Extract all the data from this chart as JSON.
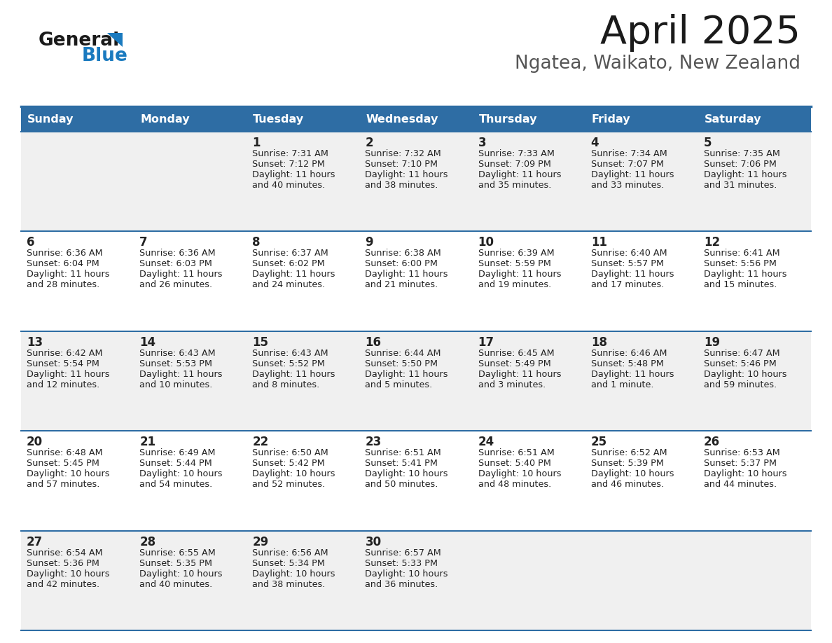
{
  "title": "April 2025",
  "subtitle": "Ngatea, Waikato, New Zealand",
  "header_bg": "#2e6da4",
  "header_text": "#ffffff",
  "row_bg_odd": "#f0f0f0",
  "row_bg_even": "#ffffff",
  "cell_border": "#2e6da4",
  "days_of_week": [
    "Sunday",
    "Monday",
    "Tuesday",
    "Wednesday",
    "Thursday",
    "Friday",
    "Saturday"
  ],
  "calendar": [
    [
      {
        "day": "",
        "sunrise": "",
        "sunset": "",
        "daylight": ""
      },
      {
        "day": "",
        "sunrise": "",
        "sunset": "",
        "daylight": ""
      },
      {
        "day": "1",
        "sunrise": "Sunrise: 7:31 AM",
        "sunset": "Sunset: 7:12 PM",
        "daylight": "Daylight: 11 hours\nand 40 minutes."
      },
      {
        "day": "2",
        "sunrise": "Sunrise: 7:32 AM",
        "sunset": "Sunset: 7:10 PM",
        "daylight": "Daylight: 11 hours\nand 38 minutes."
      },
      {
        "day": "3",
        "sunrise": "Sunrise: 7:33 AM",
        "sunset": "Sunset: 7:09 PM",
        "daylight": "Daylight: 11 hours\nand 35 minutes."
      },
      {
        "day": "4",
        "sunrise": "Sunrise: 7:34 AM",
        "sunset": "Sunset: 7:07 PM",
        "daylight": "Daylight: 11 hours\nand 33 minutes."
      },
      {
        "day": "5",
        "sunrise": "Sunrise: 7:35 AM",
        "sunset": "Sunset: 7:06 PM",
        "daylight": "Daylight: 11 hours\nand 31 minutes."
      }
    ],
    [
      {
        "day": "6",
        "sunrise": "Sunrise: 6:36 AM",
        "sunset": "Sunset: 6:04 PM",
        "daylight": "Daylight: 11 hours\nand 28 minutes."
      },
      {
        "day": "7",
        "sunrise": "Sunrise: 6:36 AM",
        "sunset": "Sunset: 6:03 PM",
        "daylight": "Daylight: 11 hours\nand 26 minutes."
      },
      {
        "day": "8",
        "sunrise": "Sunrise: 6:37 AM",
        "sunset": "Sunset: 6:02 PM",
        "daylight": "Daylight: 11 hours\nand 24 minutes."
      },
      {
        "day": "9",
        "sunrise": "Sunrise: 6:38 AM",
        "sunset": "Sunset: 6:00 PM",
        "daylight": "Daylight: 11 hours\nand 21 minutes."
      },
      {
        "day": "10",
        "sunrise": "Sunrise: 6:39 AM",
        "sunset": "Sunset: 5:59 PM",
        "daylight": "Daylight: 11 hours\nand 19 minutes."
      },
      {
        "day": "11",
        "sunrise": "Sunrise: 6:40 AM",
        "sunset": "Sunset: 5:57 PM",
        "daylight": "Daylight: 11 hours\nand 17 minutes."
      },
      {
        "day": "12",
        "sunrise": "Sunrise: 6:41 AM",
        "sunset": "Sunset: 5:56 PM",
        "daylight": "Daylight: 11 hours\nand 15 minutes."
      }
    ],
    [
      {
        "day": "13",
        "sunrise": "Sunrise: 6:42 AM",
        "sunset": "Sunset: 5:54 PM",
        "daylight": "Daylight: 11 hours\nand 12 minutes."
      },
      {
        "day": "14",
        "sunrise": "Sunrise: 6:43 AM",
        "sunset": "Sunset: 5:53 PM",
        "daylight": "Daylight: 11 hours\nand 10 minutes."
      },
      {
        "day": "15",
        "sunrise": "Sunrise: 6:43 AM",
        "sunset": "Sunset: 5:52 PM",
        "daylight": "Daylight: 11 hours\nand 8 minutes."
      },
      {
        "day": "16",
        "sunrise": "Sunrise: 6:44 AM",
        "sunset": "Sunset: 5:50 PM",
        "daylight": "Daylight: 11 hours\nand 5 minutes."
      },
      {
        "day": "17",
        "sunrise": "Sunrise: 6:45 AM",
        "sunset": "Sunset: 5:49 PM",
        "daylight": "Daylight: 11 hours\nand 3 minutes."
      },
      {
        "day": "18",
        "sunrise": "Sunrise: 6:46 AM",
        "sunset": "Sunset: 5:48 PM",
        "daylight": "Daylight: 11 hours\nand 1 minute."
      },
      {
        "day": "19",
        "sunrise": "Sunrise: 6:47 AM",
        "sunset": "Sunset: 5:46 PM",
        "daylight": "Daylight: 10 hours\nand 59 minutes."
      }
    ],
    [
      {
        "day": "20",
        "sunrise": "Sunrise: 6:48 AM",
        "sunset": "Sunset: 5:45 PM",
        "daylight": "Daylight: 10 hours\nand 57 minutes."
      },
      {
        "day": "21",
        "sunrise": "Sunrise: 6:49 AM",
        "sunset": "Sunset: 5:44 PM",
        "daylight": "Daylight: 10 hours\nand 54 minutes."
      },
      {
        "day": "22",
        "sunrise": "Sunrise: 6:50 AM",
        "sunset": "Sunset: 5:42 PM",
        "daylight": "Daylight: 10 hours\nand 52 minutes."
      },
      {
        "day": "23",
        "sunrise": "Sunrise: 6:51 AM",
        "sunset": "Sunset: 5:41 PM",
        "daylight": "Daylight: 10 hours\nand 50 minutes."
      },
      {
        "day": "24",
        "sunrise": "Sunrise: 6:51 AM",
        "sunset": "Sunset: 5:40 PM",
        "daylight": "Daylight: 10 hours\nand 48 minutes."
      },
      {
        "day": "25",
        "sunrise": "Sunrise: 6:52 AM",
        "sunset": "Sunset: 5:39 PM",
        "daylight": "Daylight: 10 hours\nand 46 minutes."
      },
      {
        "day": "26",
        "sunrise": "Sunrise: 6:53 AM",
        "sunset": "Sunset: 5:37 PM",
        "daylight": "Daylight: 10 hours\nand 44 minutes."
      }
    ],
    [
      {
        "day": "27",
        "sunrise": "Sunrise: 6:54 AM",
        "sunset": "Sunset: 5:36 PM",
        "daylight": "Daylight: 10 hours\nand 42 minutes."
      },
      {
        "day": "28",
        "sunrise": "Sunrise: 6:55 AM",
        "sunset": "Sunset: 5:35 PM",
        "daylight": "Daylight: 10 hours\nand 40 minutes."
      },
      {
        "day": "29",
        "sunrise": "Sunrise: 6:56 AM",
        "sunset": "Sunset: 5:34 PM",
        "daylight": "Daylight: 10 hours\nand 38 minutes."
      },
      {
        "day": "30",
        "sunrise": "Sunrise: 6:57 AM",
        "sunset": "Sunset: 5:33 PM",
        "daylight": "Daylight: 10 hours\nand 36 minutes."
      },
      {
        "day": "",
        "sunrise": "",
        "sunset": "",
        "daylight": ""
      },
      {
        "day": "",
        "sunrise": "",
        "sunset": "",
        "daylight": ""
      },
      {
        "day": "",
        "sunrise": "",
        "sunset": "",
        "daylight": ""
      }
    ]
  ],
  "logo_general_color": "#1a1a1a",
  "logo_blue_color": "#1a7abf",
  "logo_triangle_color": "#1a7abf",
  "fig_width": 11.88,
  "fig_height": 9.18,
  "dpi": 100
}
